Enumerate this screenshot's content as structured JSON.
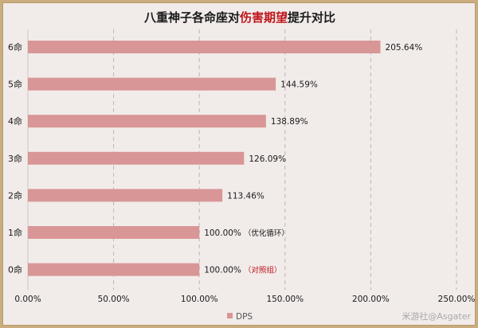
{
  "chart_data": {
    "type": "bar",
    "orientation": "horizontal",
    "title": {
      "prefix": "八重神子各命座对",
      "highlight": "伤害期望",
      "suffix": "提升对比"
    },
    "categories": [
      "6命",
      "5命",
      "4命",
      "3命",
      "2命",
      "1命",
      "0命"
    ],
    "series": [
      {
        "name": "DPS",
        "values": [
          205.64,
          144.59,
          138.89,
          126.09,
          113.46,
          100.0,
          100.0
        ],
        "labels": [
          "205.64%",
          "144.59%",
          "138.89%",
          "126.09%",
          "113.46%",
          "100.00%",
          "100.00%"
        ],
        "notes": [
          "",
          "",
          "",
          "",
          "",
          "（优化循环）",
          "（对照组）"
        ],
        "note_colors": [
          "",
          "",
          "",
          "",
          "",
          "#1a1a1a",
          "#c0141b"
        ]
      }
    ],
    "xlim": [
      0,
      250
    ],
    "xticks": [
      "0.00%",
      "50.00%",
      "100.00%",
      "150.00%",
      "200.00%",
      "250.00%"
    ],
    "grid": true,
    "legend_position": "bottom",
    "colors": {
      "bar": "#d99696",
      "highlight": "#c0141b",
      "background": "#f1ecea",
      "border": "#c9ad7f"
    }
  },
  "watermark": "米游社@Asgater"
}
